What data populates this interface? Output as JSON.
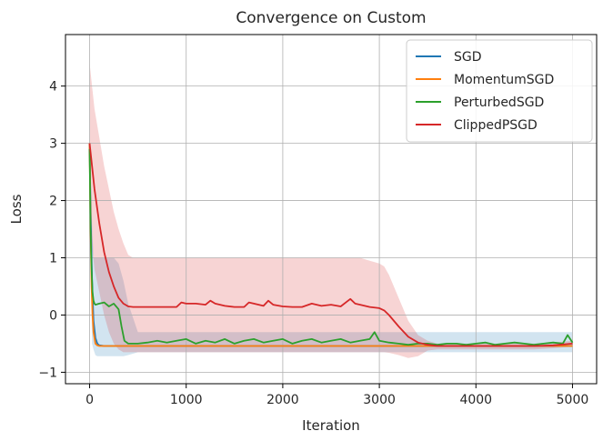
{
  "chart_data": {
    "type": "line",
    "title": "Convergence on Custom",
    "xlabel": "Iteration",
    "ylabel": "Loss",
    "xlim": [
      -250,
      5250
    ],
    "ylim": [
      -1.2,
      4.9
    ],
    "xticks": [
      0,
      1000,
      2000,
      3000,
      4000,
      5000
    ],
    "xtick_labels": [
      "0",
      "1000",
      "2000",
      "3000",
      "4000",
      "5000"
    ],
    "yticks": [
      -1,
      0,
      1,
      2,
      3,
      4
    ],
    "ytick_labels": [
      "−1",
      "0",
      "1",
      "2",
      "3",
      "4"
    ],
    "grid": true,
    "legend_position": "top-right",
    "series": [
      {
        "name": "SGD",
        "color": "#1f77b4",
        "x": [
          0,
          10,
          25,
          40,
          60,
          80,
          100,
          150,
          200,
          250,
          300,
          350,
          400,
          500,
          1000,
          2000,
          3000,
          4000,
          5000
        ],
        "y": [
          3.0,
          1.8,
          0.6,
          -0.1,
          -0.4,
          -0.5,
          -0.53,
          -0.54,
          -0.54,
          -0.54,
          -0.54,
          -0.54,
          -0.54,
          -0.54,
          -0.54,
          -0.54,
          -0.54,
          -0.54,
          -0.54
        ],
        "band_upper": [
          3.0,
          2.5,
          1.6,
          1.0,
          1.0,
          1.0,
          1.0,
          1.0,
          1.0,
          1.0,
          0.9,
          0.6,
          0.2,
          -0.3,
          -0.3,
          -0.3,
          -0.3,
          -0.3,
          -0.3
        ],
        "band_lower": [
          3.0,
          1.0,
          -0.5,
          -0.6,
          -0.7,
          -0.72,
          -0.72,
          -0.72,
          -0.72,
          -0.72,
          -0.72,
          -0.72,
          -0.7,
          -0.65,
          -0.65,
          -0.65,
          -0.65,
          -0.65,
          -0.65
        ]
      },
      {
        "name": "MomentumSGD",
        "color": "#ff7f0e",
        "x": [
          0,
          10,
          20,
          30,
          40,
          60,
          80,
          100,
          200,
          300,
          350,
          1000,
          2000,
          3000,
          4000,
          5000
        ],
        "y": [
          3.0,
          1.5,
          0.5,
          0.0,
          -0.3,
          -0.5,
          -0.53,
          -0.54,
          -0.54,
          -0.54,
          -0.54,
          -0.54,
          -0.54,
          -0.54,
          -0.54,
          -0.54
        ]
      },
      {
        "name": "PerturbedSGD",
        "color": "#2ca02c",
        "x": [
          0,
          10,
          20,
          30,
          40,
          50,
          60,
          100,
          150,
          200,
          250,
          300,
          330,
          360,
          400,
          500,
          600,
          700,
          800,
          900,
          1000,
          1100,
          1200,
          1300,
          1400,
          1500,
          1600,
          1700,
          1800,
          1900,
          2000,
          2100,
          2200,
          2300,
          2400,
          2500,
          2600,
          2700,
          2800,
          2900,
          2950,
          3000,
          3100,
          3200,
          3300,
          3400,
          3500,
          3600,
          3700,
          3800,
          3900,
          4000,
          4100,
          4200,
          4300,
          4400,
          4500,
          4600,
          4700,
          4800,
          4900,
          4950,
          5000
        ],
        "y": [
          2.9,
          1.5,
          0.8,
          0.4,
          0.25,
          0.2,
          0.18,
          0.2,
          0.22,
          0.15,
          0.2,
          0.1,
          -0.2,
          -0.45,
          -0.5,
          -0.5,
          -0.48,
          -0.45,
          -0.48,
          -0.45,
          -0.42,
          -0.5,
          -0.45,
          -0.48,
          -0.42,
          -0.5,
          -0.45,
          -0.42,
          -0.48,
          -0.45,
          -0.42,
          -0.5,
          -0.45,
          -0.42,
          -0.48,
          -0.45,
          -0.42,
          -0.48,
          -0.45,
          -0.42,
          -0.3,
          -0.45,
          -0.48,
          -0.5,
          -0.52,
          -0.5,
          -0.5,
          -0.52,
          -0.5,
          -0.5,
          -0.52,
          -0.5,
          -0.48,
          -0.52,
          -0.5,
          -0.48,
          -0.5,
          -0.52,
          -0.5,
          -0.48,
          -0.5,
          -0.35,
          -0.48
        ]
      },
      {
        "name": "ClippedPSGD",
        "color": "#d62728",
        "x": [
          0,
          50,
          100,
          150,
          200,
          250,
          300,
          350,
          400,
          450,
          500,
          600,
          700,
          800,
          900,
          950,
          1000,
          1100,
          1200,
          1250,
          1300,
          1400,
          1500,
          1600,
          1650,
          1700,
          1800,
          1850,
          1900,
          2000,
          2100,
          2200,
          2300,
          2400,
          2500,
          2600,
          2700,
          2750,
          2800,
          2900,
          3000,
          3050,
          3100,
          3200,
          3300,
          3400,
          3500,
          3600,
          3800,
          4000,
          4200,
          4400,
          4600,
          4800,
          5000
        ],
        "y": [
          3.0,
          2.2,
          1.6,
          1.1,
          0.75,
          0.5,
          0.3,
          0.2,
          0.15,
          0.14,
          0.14,
          0.14,
          0.14,
          0.14,
          0.14,
          0.22,
          0.2,
          0.2,
          0.18,
          0.25,
          0.2,
          0.16,
          0.14,
          0.14,
          0.22,
          0.2,
          0.16,
          0.25,
          0.18,
          0.15,
          0.14,
          0.14,
          0.2,
          0.16,
          0.18,
          0.15,
          0.28,
          0.2,
          0.18,
          0.14,
          0.12,
          0.08,
          0.0,
          -0.2,
          -0.38,
          -0.48,
          -0.52,
          -0.54,
          -0.54,
          -0.54,
          -0.54,
          -0.54,
          -0.54,
          -0.53,
          -0.5
        ],
        "band_upper": [
          4.4,
          3.6,
          3.1,
          2.6,
          2.2,
          1.8,
          1.5,
          1.25,
          1.05,
          1.0,
          1.0,
          1.0,
          1.0,
          1.0,
          1.0,
          1.0,
          1.0,
          1.0,
          1.0,
          1.0,
          1.0,
          1.0,
          1.0,
          1.0,
          1.0,
          1.0,
          1.0,
          1.0,
          1.0,
          1.0,
          1.0,
          1.0,
          1.0,
          1.0,
          1.0,
          1.0,
          1.0,
          1.0,
          1.0,
          0.95,
          0.9,
          0.85,
          0.7,
          0.3,
          -0.1,
          -0.35,
          -0.45,
          -0.5,
          -0.5,
          -0.5,
          -0.5,
          -0.5,
          -0.5,
          -0.48,
          -0.45
        ],
        "band_lower": [
          1.6,
          0.8,
          0.4,
          0.0,
          -0.3,
          -0.5,
          -0.6,
          -0.65,
          -0.65,
          -0.65,
          -0.65,
          -0.65,
          -0.65,
          -0.65,
          -0.65,
          -0.65,
          -0.65,
          -0.65,
          -0.65,
          -0.65,
          -0.65,
          -0.65,
          -0.65,
          -0.65,
          -0.65,
          -0.65,
          -0.65,
          -0.65,
          -0.65,
          -0.65,
          -0.65,
          -0.65,
          -0.65,
          -0.65,
          -0.65,
          -0.65,
          -0.65,
          -0.65,
          -0.65,
          -0.65,
          -0.65,
          -0.65,
          -0.66,
          -0.7,
          -0.75,
          -0.72,
          -0.62,
          -0.6,
          -0.6,
          -0.6,
          -0.6,
          -0.6,
          -0.6,
          -0.58,
          -0.55
        ]
      }
    ]
  }
}
